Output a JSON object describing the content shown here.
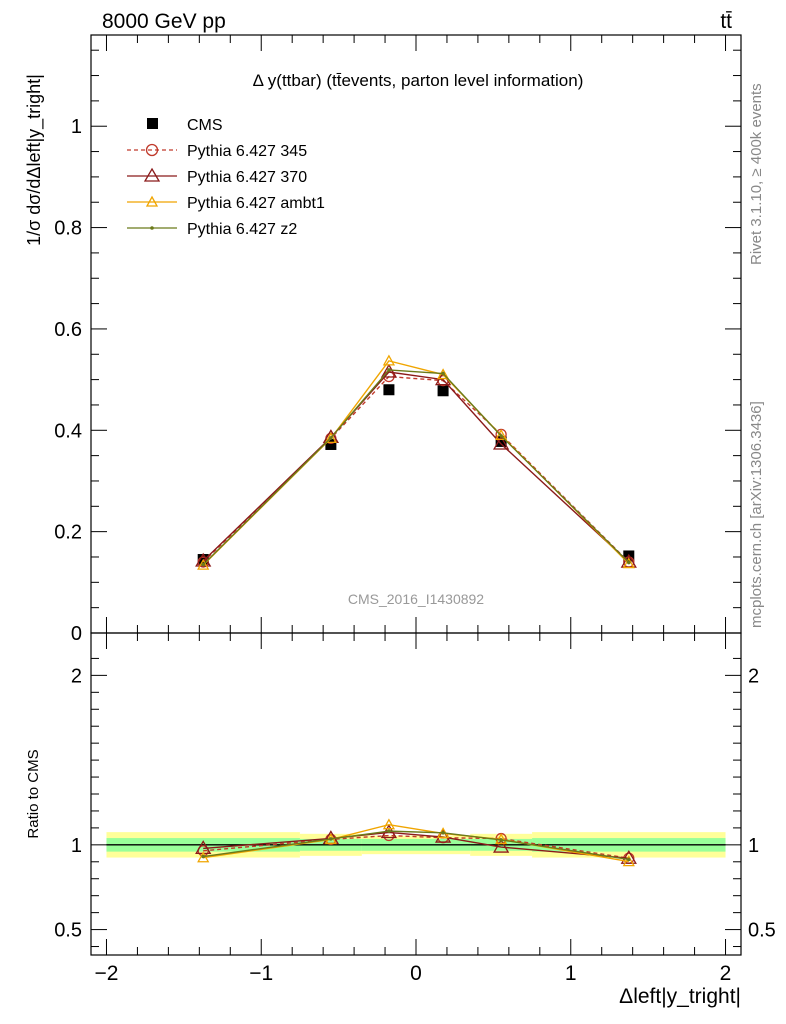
{
  "header": {
    "left_label": "8000 GeV pp",
    "right_label": "tt̄",
    "plot_title": "Δ y(ttbar) (tt̄events, parton level information)",
    "analysis_id": "CMS_2016_I1430892",
    "side_label_1": "Rivet 3.1.10, ≥ 400k events",
    "side_label_2": "mcplots.cern.ch [arXiv:1306.3436]"
  },
  "axes": {
    "y_main_label": "1/σ dσ/dΔleft|y_tright|",
    "y_ratio_label": "Ratio to CMS",
    "x_label": "Δleft|y_tright|"
  },
  "colors": {
    "cms": "#000000",
    "p345": "#c0392b",
    "p370": "#8b1a1a",
    "ambt1": "#f0a500",
    "z2": "#6b7a1a",
    "band_inner": "#99ff99",
    "band_outer": "#ffff99"
  },
  "chart_data": [
    {
      "type": "line",
      "panel": "main",
      "x": [
        -1.375,
        -0.55,
        -0.175,
        0.175,
        0.55,
        1.375
      ],
      "xlim": [
        -2.1,
        2.1
      ],
      "ylim": [
        0,
        1.18
      ],
      "x_ticks": [
        -2,
        -1,
        0,
        1,
        2
      ],
      "y_ticks": [
        0,
        0.2,
        0.4,
        0.6,
        0.8,
        1
      ],
      "y_tick_labels": [
        "0",
        "0.2",
        "0.4",
        "0.6",
        "0.8",
        "1"
      ],
      "series": [
        {
          "name": "CMS",
          "key": "cms",
          "marker": "square",
          "values": [
            0.145,
            0.372,
            0.48,
            0.478,
            0.378,
            0.152
          ]
        },
        {
          "name": "Pythia 6.427 345",
          "key": "p345",
          "marker": "circle",
          "dashed": true,
          "values": [
            0.14,
            0.384,
            0.506,
            0.498,
            0.392,
            0.14
          ]
        },
        {
          "name": "Pythia 6.427 370",
          "key": "p370",
          "marker": "triangle",
          "values": [
            0.142,
            0.386,
            0.515,
            0.5,
            0.373,
            0.14
          ]
        },
        {
          "name": "Pythia 6.427 ambt1",
          "key": "ambt1",
          "marker": "triangle-small",
          "values": [
            0.134,
            0.384,
            0.537,
            0.51,
            0.39,
            0.137
          ]
        },
        {
          "name": "Pythia 6.427 z2",
          "key": "z2",
          "marker": "dot",
          "values": [
            0.135,
            0.385,
            0.519,
            0.512,
            0.389,
            0.139
          ]
        }
      ]
    },
    {
      "type": "line",
      "panel": "ratio",
      "x": [
        -1.375,
        -0.55,
        -0.175,
        0.175,
        0.55,
        1.375
      ],
      "xlim": [
        -2.1,
        2.1
      ],
      "ylim": [
        0.35,
        2.25
      ],
      "x_ticks": [
        -2,
        -1,
        0,
        1,
        2
      ],
      "x_tick_labels": [
        "−2",
        "−1",
        "0",
        "1",
        "2"
      ],
      "y_ticks": [
        0.5,
        1,
        2
      ],
      "y_tick_labels": [
        "0.5",
        "1",
        "2"
      ],
      "bands": {
        "x_edges": [
          -2.0,
          -0.75,
          -0.35,
          0.0,
          0.35,
          0.75,
          2.0
        ],
        "inner": [
          0.04,
          0.035,
          0.035,
          0.035,
          0.035,
          0.04
        ],
        "outer": [
          0.075,
          0.065,
          0.055,
          0.055,
          0.065,
          0.075
        ]
      },
      "series": [
        {
          "name": "Pythia 6.427 345",
          "key": "p345",
          "marker": "circle",
          "dashed": true,
          "values": [
            0.965,
            1.032,
            1.055,
            1.042,
            1.037,
            0.921
          ]
        },
        {
          "name": "Pythia 6.427 370",
          "key": "p370",
          "marker": "triangle",
          "values": [
            0.979,
            1.038,
            1.073,
            1.046,
            0.987,
            0.921
          ]
        },
        {
          "name": "Pythia 6.427 ambt1",
          "key": "ambt1",
          "marker": "triangle-small",
          "values": [
            0.924,
            1.032,
            1.119,
            1.067,
            1.032,
            0.901
          ]
        },
        {
          "name": "Pythia 6.427 z2",
          "key": "z2",
          "marker": "dot",
          "values": [
            0.931,
            1.035,
            1.081,
            1.071,
            1.029,
            0.914
          ]
        }
      ]
    }
  ]
}
